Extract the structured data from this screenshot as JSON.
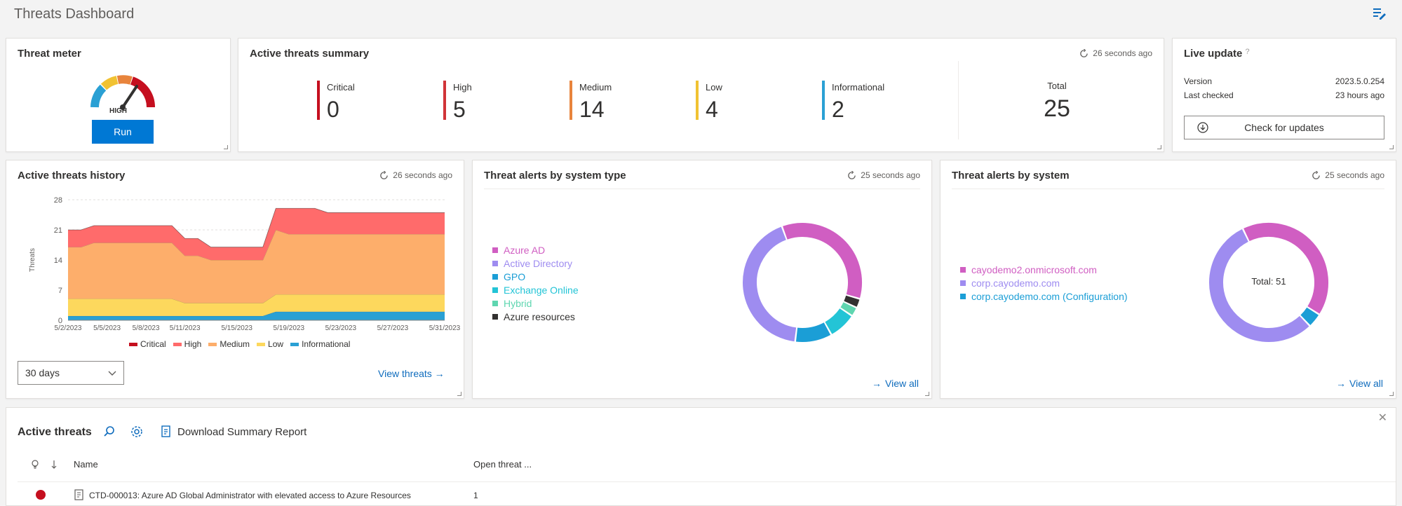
{
  "header": {
    "title": "Threats Dashboard",
    "edit_icon": "edit-list-icon"
  },
  "threat_meter": {
    "title": "Threat meter",
    "level": "HIGH",
    "run_label": "Run"
  },
  "summary": {
    "title": "Active threats summary",
    "refreshed": "26 seconds ago",
    "levels": [
      {
        "label": "Critical",
        "value": "0",
        "color": "#c50f1f"
      },
      {
        "label": "High",
        "value": "5",
        "color": "#d13438"
      },
      {
        "label": "Medium",
        "value": "14",
        "color": "#e8843c"
      },
      {
        "label": "Low",
        "value": "4",
        "color": "#f1c232"
      },
      {
        "label": "Informational",
        "value": "2",
        "color": "#2aa0d4"
      }
    ],
    "total_label": "Total",
    "total_value": "25"
  },
  "live_update": {
    "title": "Live update",
    "help": "?",
    "version_label": "Version",
    "version_value": "2023.5.0.254",
    "checked_label": "Last checked",
    "checked_value": "23 hours ago",
    "check_label": "Check for updates"
  },
  "history": {
    "title": "Active threats history",
    "refreshed": "26 seconds ago",
    "range_value": "30 days",
    "view_link": "View threats →",
    "legend": [
      {
        "label": "Critical",
        "color": "#c50f1f"
      },
      {
        "label": "High",
        "color": "#ff6b6b"
      },
      {
        "label": "Medium",
        "color": "#fdae6b"
      },
      {
        "label": "Low",
        "color": "#fdd85d"
      },
      {
        "label": "Informational",
        "color": "#2aa0d4"
      }
    ]
  },
  "by_type": {
    "title": "Threat alerts by system type",
    "refreshed": "25 seconds ago",
    "view_all": "View all",
    "legend": [
      {
        "label": "Azure AD",
        "color": "#d05ec2"
      },
      {
        "label": "Active Directory",
        "color": "#9e8cf0"
      },
      {
        "label": "GPO",
        "color": "#1b9ed6"
      },
      {
        "label": "Exchange Online",
        "color": "#23c4d6"
      },
      {
        "label": "Hybrid",
        "color": "#5fd6b0"
      },
      {
        "label": "Azure resources",
        "color": "#323130"
      }
    ]
  },
  "by_system": {
    "title": "Threat alerts by system",
    "refreshed": "25 seconds ago",
    "view_all": "View all",
    "total_text": "Total: 51",
    "legend": [
      {
        "label": "cayodemo2.onmicrosoft.com",
        "color": "#d05ec2"
      },
      {
        "label": "corp.cayodemo.com",
        "color": "#9e8cf0"
      },
      {
        "label": "corp.cayodemo.com (Configuration)",
        "color": "#1b9ed6"
      }
    ]
  },
  "active_threats": {
    "title": "Active threats",
    "report_label": "Download Summary Report",
    "columns": {
      "name": "Name",
      "open": "Open threat ..."
    },
    "rows": [
      {
        "name": "CTD-000013: Azure AD Global Administrator with elevated access to Azure Resources",
        "open": "1"
      }
    ]
  },
  "chart_data": [
    {
      "type": "area",
      "title": "Active threats history",
      "xlabel": "",
      "ylabel": "Threats",
      "ylim": [
        0,
        28
      ],
      "yticks": [
        0,
        7,
        14,
        21,
        28
      ],
      "x": [
        "5/2/2023",
        "5/3/2023",
        "5/4/2023",
        "5/5/2023",
        "5/6/2023",
        "5/7/2023",
        "5/8/2023",
        "5/9/2023",
        "5/10/2023",
        "5/11/2023",
        "5/12/2023",
        "5/13/2023",
        "5/14/2023",
        "5/15/2023",
        "5/16/2023",
        "5/17/2023",
        "5/18/2023",
        "5/19/2023",
        "5/20/2023",
        "5/21/2023",
        "5/22/2023",
        "5/23/2023",
        "5/24/2023",
        "5/25/2023",
        "5/26/2023",
        "5/27/2023",
        "5/28/2023",
        "5/29/2023",
        "5/30/2023",
        "5/31/2023"
      ],
      "xtick_labels": [
        "5/2/2023",
        "5/5/2023",
        "5/8/2023",
        "5/11/2023",
        "5/15/2023",
        "5/19/2023",
        "5/23/2023",
        "5/27/2023",
        "5/31/2023"
      ],
      "stacked": true,
      "series": [
        {
          "name": "Informational",
          "values": [
            1,
            1,
            1,
            1,
            1,
            1,
            1,
            1,
            1,
            1,
            1,
            1,
            1,
            1,
            1,
            1,
            2,
            2,
            2,
            2,
            2,
            2,
            2,
            2,
            2,
            2,
            2,
            2,
            2,
            2
          ]
        },
        {
          "name": "Low",
          "values": [
            4,
            4,
            4,
            4,
            4,
            4,
            4,
            4,
            4,
            3,
            3,
            3,
            3,
            3,
            3,
            3,
            4,
            4,
            4,
            4,
            4,
            4,
            4,
            4,
            4,
            4,
            4,
            4,
            4,
            4
          ]
        },
        {
          "name": "Medium",
          "values": [
            12,
            12,
            13,
            13,
            13,
            13,
            13,
            13,
            13,
            11,
            11,
            10,
            10,
            10,
            10,
            10,
            15,
            14,
            14,
            14,
            14,
            14,
            14,
            14,
            14,
            14,
            14,
            14,
            14,
            14
          ]
        },
        {
          "name": "High",
          "values": [
            4,
            4,
            4,
            4,
            4,
            4,
            4,
            4,
            4,
            4,
            4,
            3,
            3,
            3,
            3,
            3,
            5,
            6,
            6,
            6,
            5,
            5,
            5,
            5,
            5,
            5,
            5,
            5,
            5,
            5
          ]
        },
        {
          "name": "Critical",
          "values": [
            0,
            0,
            0,
            0,
            0,
            0,
            0,
            0,
            0,
            0,
            0,
            0,
            0,
            0,
            0,
            0,
            0,
            0,
            0,
            0,
            0,
            0,
            0,
            0,
            0,
            0,
            0,
            0,
            0,
            0
          ]
        }
      ],
      "grid": true,
      "legend_position": "bottom"
    },
    {
      "type": "pie",
      "title": "Threat alerts by system type",
      "labels": [
        "Azure AD",
        "Azure resources",
        "Hybrid",
        "Exchange Online",
        "GPO",
        "Active Directory"
      ],
      "values": [
        14,
        1,
        1,
        3,
        4,
        17
      ]
    },
    {
      "type": "pie",
      "title": "Threat alerts by system",
      "labels": [
        "cayodemo2.onmicrosoft.com",
        "corp.cayodemo.com (Configuration)",
        "corp.cayodemo.com"
      ],
      "values": [
        21,
        2,
        28
      ]
    }
  ]
}
